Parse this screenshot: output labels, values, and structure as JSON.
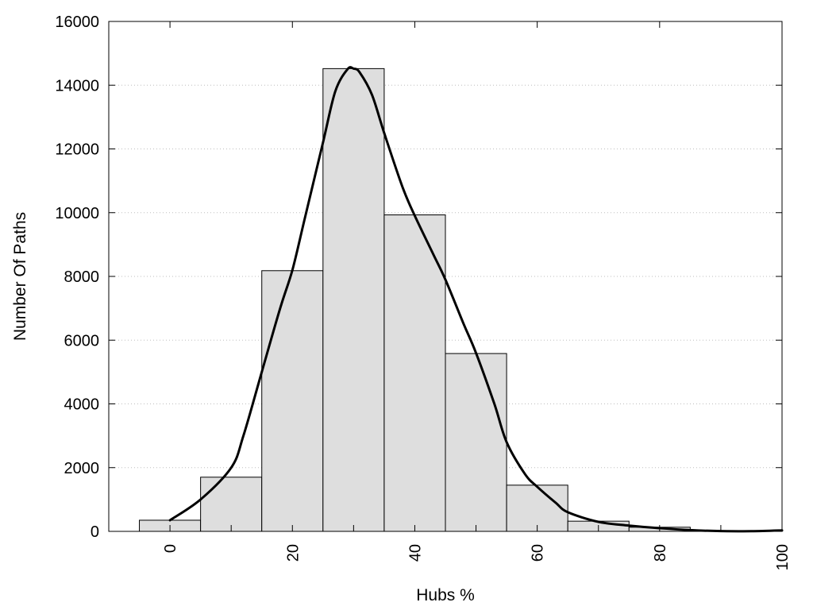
{
  "chart_data": {
    "type": "bar",
    "title": "",
    "xlabel": "Hubs %",
    "ylabel": "Number Of Paths",
    "xlim": [
      -10,
      100
    ],
    "ylim": [
      0,
      16000
    ],
    "grid": true,
    "x_ticks": [
      0,
      20,
      40,
      60,
      80,
      100
    ],
    "x_tick_labels": [
      "0",
      "20",
      "40",
      "60",
      "80",
      "100"
    ],
    "y_ticks": [
      0,
      2000,
      4000,
      6000,
      8000,
      10000,
      12000,
      14000,
      16000
    ],
    "y_tick_labels": [
      "0",
      "2000",
      "4000",
      "6000",
      "8000",
      "10000",
      "12000",
      "14000",
      "16000"
    ],
    "bin_width": 10,
    "bins": [
      {
        "center": 0,
        "value": 350
      },
      {
        "center": 10,
        "value": 1700
      },
      {
        "center": 20,
        "value": 8180
      },
      {
        "center": 30,
        "value": 14520
      },
      {
        "center": 40,
        "value": 9930
      },
      {
        "center": 50,
        "value": 5580
      },
      {
        "center": 60,
        "value": 1450
      },
      {
        "center": 70,
        "value": 320
      },
      {
        "center": 80,
        "value": 130
      },
      {
        "center": 90,
        "value": 0
      }
    ],
    "density_curve": {
      "x": [
        0,
        5,
        10,
        12,
        15,
        18,
        20,
        22,
        25,
        27,
        29,
        30,
        31,
        33,
        35,
        38,
        40,
        43,
        45,
        48,
        50,
        53,
        55,
        58,
        60,
        63,
        65,
        70,
        75,
        80,
        85,
        90,
        95,
        100
      ],
      "y": [
        350,
        1000,
        2000,
        3000,
        5000,
        7000,
        8200,
        9800,
        12200,
        13800,
        14500,
        14520,
        14400,
        13700,
        12500,
        10800,
        9900,
        8700,
        7900,
        6500,
        5600,
        4000,
        2800,
        1800,
        1400,
        900,
        600,
        300,
        180,
        100,
        40,
        10,
        5,
        30
      ]
    }
  }
}
